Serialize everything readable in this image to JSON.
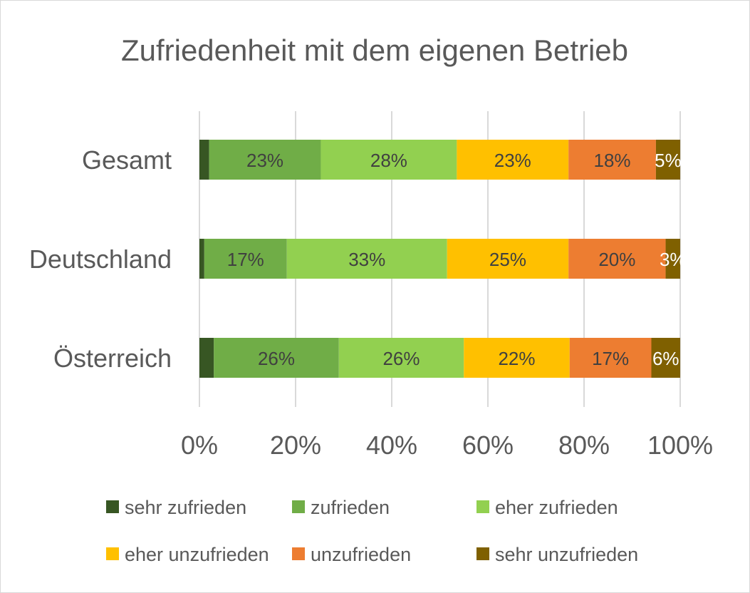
{
  "chart_data": {
    "type": "bar",
    "orientation": "horizontal",
    "stacked": "100%",
    "title": "Zufriedenheit mit dem eigenen Betrieb",
    "categories": [
      "Gesamt",
      "Deutschland",
      "Österreich"
    ],
    "series": [
      {
        "name": "sehr zufrieden",
        "color": "#375623",
        "label_color": "#404040",
        "values": [
          2,
          1,
          3
        ],
        "labels": [
          "",
          "",
          ""
        ]
      },
      {
        "name": "zufrieden",
        "color": "#70ad47",
        "label_color": "#404040",
        "values": [
          23,
          17,
          26
        ],
        "labels": [
          "23%",
          "17%",
          "26%"
        ]
      },
      {
        "name": "eher zufrieden",
        "color": "#92d050",
        "label_color": "#404040",
        "values": [
          28,
          33,
          26
        ],
        "labels": [
          "28%",
          "33%",
          "26%"
        ]
      },
      {
        "name": "eher unzufrieden",
        "color": "#ffc000",
        "label_color": "#404040",
        "values": [
          23,
          25,
          22
        ],
        "labels": [
          "23%",
          "25%",
          "22%"
        ]
      },
      {
        "name": "unzufrieden",
        "color": "#ed7d31",
        "label_color": "#404040",
        "values": [
          18,
          20,
          17
        ],
        "labels": [
          "18%",
          "20%",
          "17%"
        ]
      },
      {
        "name": "sehr unzufrieden",
        "color": "#7f6000",
        "label_color": "#ffffff",
        "values": [
          5,
          3,
          6
        ],
        "labels": [
          "5%",
          "3%",
          "6%"
        ]
      }
    ],
    "xlim": [
      0,
      100
    ],
    "xticks": [
      "0%",
      "20%",
      "40%",
      "60%",
      "80%",
      "100%"
    ],
    "grid": "vertical",
    "legend": "bottom",
    "title_color": "#595959",
    "axis_text_color": "#595959",
    "grid_color": "#d9d9d9"
  }
}
